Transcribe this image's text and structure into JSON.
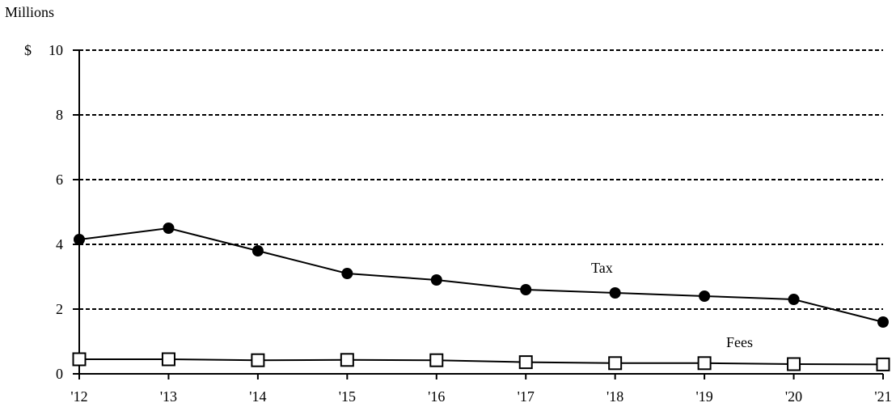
{
  "chart_data": {
    "type": "line",
    "y_unit_label": "Millions",
    "y_prefix": "$",
    "categories": [
      "'12",
      "'13",
      "'14",
      "'15",
      "'16",
      "'17",
      "'18",
      "'19",
      "'20",
      "'21"
    ],
    "ylim": [
      0,
      10
    ],
    "yticks": [
      0,
      2,
      4,
      6,
      8,
      10
    ],
    "grid": "horizontal dashed",
    "series": [
      {
        "name": "Tax",
        "marker": "filled-circle",
        "values": [
          4.15,
          4.5,
          3.8,
          3.1,
          2.9,
          2.6,
          2.5,
          2.4,
          2.3,
          1.6
        ]
      },
      {
        "name": "Fees",
        "marker": "open-square",
        "values": [
          0.45,
          0.45,
          0.42,
          0.43,
          0.42,
          0.36,
          0.33,
          0.33,
          0.3,
          0.29
        ]
      }
    ],
    "colors": {
      "line": "#000000",
      "grid": "#000000",
      "marker_fill_open": "#ffffff"
    }
  }
}
